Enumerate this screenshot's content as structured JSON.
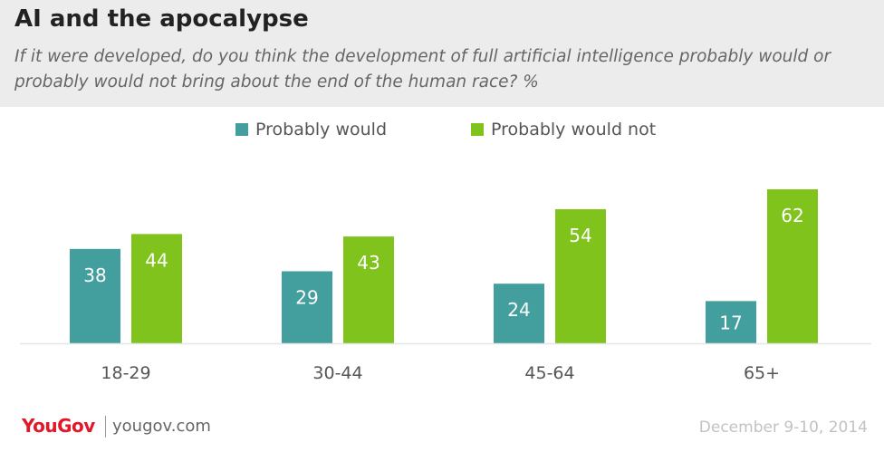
{
  "header": {
    "title": "AI and the apocalypse",
    "subtitle": "If it were developed, do you think the development of full artificial intelligence probably would or probably would not bring about the end of the human race? %"
  },
  "colors": {
    "would": "#439e9e",
    "would_not": "#7fc31c",
    "header_bg": "#ececec",
    "brand": "#e3172a"
  },
  "chart_data": {
    "type": "bar",
    "categories": [
      "18-29",
      "30-44",
      "45-64",
      "65+"
    ],
    "series": [
      {
        "name": "Probably would",
        "values": [
          38,
          29,
          24,
          17
        ]
      },
      {
        "name": "Probably would not",
        "values": [
          44,
          43,
          54,
          62
        ]
      }
    ],
    "ylim": [
      0,
      62
    ],
    "legend_position": "top",
    "grid": false
  },
  "footer": {
    "brand_you": "You",
    "brand_gov": "Gov",
    "site": "yougov.com",
    "date": "December 9-10, 2014"
  }
}
